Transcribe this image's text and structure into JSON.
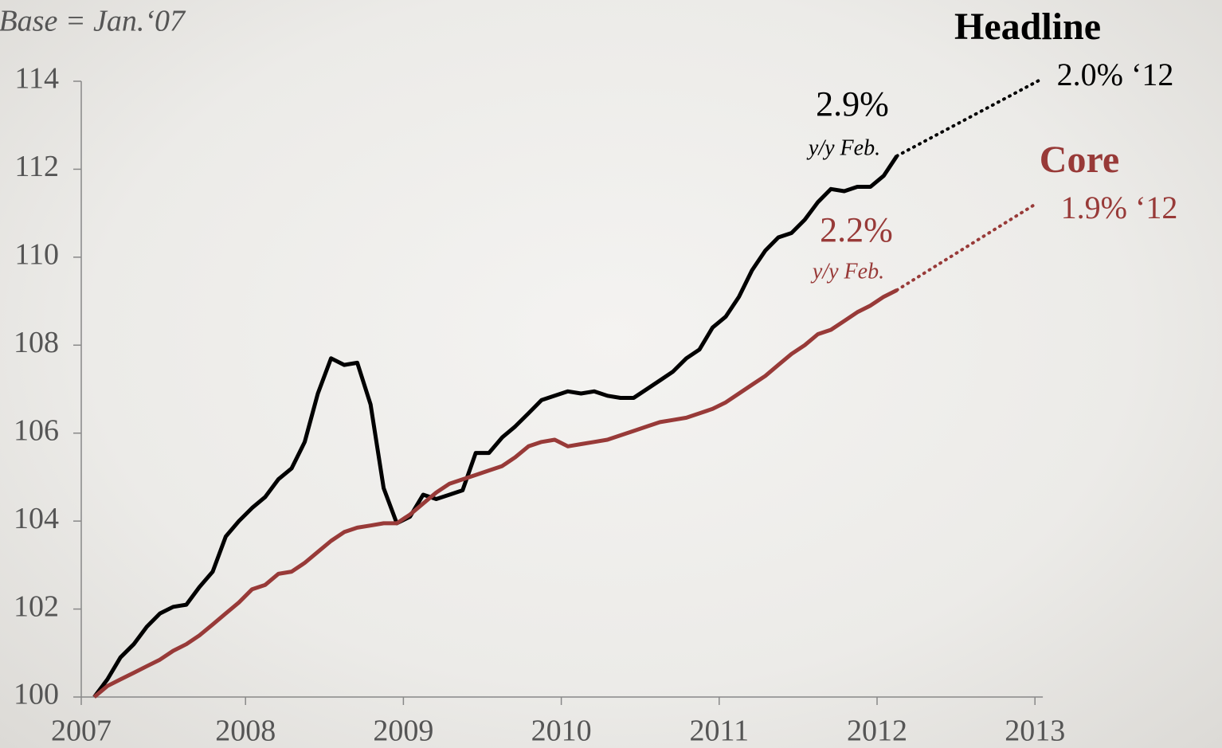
{
  "chart_data": {
    "type": "line",
    "subtitle": "Base = Jan.‘07",
    "x": [
      2007.042,
      2007.125,
      2007.208,
      2007.292,
      2007.375,
      2007.458,
      2007.542,
      2007.625,
      2007.708,
      2007.792,
      2007.875,
      2007.958,
      2008.042,
      2008.125,
      2008.208,
      2008.292,
      2008.375,
      2008.458,
      2008.542,
      2008.625,
      2008.708,
      2008.792,
      2008.875,
      2008.958,
      2009.042,
      2009.125,
      2009.208,
      2009.292,
      2009.375,
      2009.458,
      2009.542,
      2009.625,
      2009.708,
      2009.792,
      2009.875,
      2009.958,
      2010.042,
      2010.125,
      2010.208,
      2010.292,
      2010.375,
      2010.458,
      2010.542,
      2010.625,
      2010.708,
      2010.792,
      2010.875,
      2010.958,
      2011.042,
      2011.125,
      2011.208,
      2011.292,
      2011.375,
      2011.458,
      2011.542,
      2011.625,
      2011.708,
      2011.792,
      2011.875,
      2011.958,
      2012.042,
      2012.125
    ],
    "series": [
      {
        "name": "Headline",
        "color": "#000000",
        "values": [
          100,
          100.4,
          100.9,
          101.2,
          101.6,
          101.9,
          102.05,
          102.1,
          102.5,
          102.85,
          103.65,
          104.0,
          104.3,
          104.55,
          104.95,
          105.2,
          105.8,
          106.9,
          107.7,
          107.55,
          107.6,
          106.65,
          104.75,
          103.95,
          104.1,
          104.6,
          104.5,
          104.6,
          104.7,
          105.55,
          105.55,
          105.9,
          106.15,
          106.45,
          106.75,
          106.85,
          106.95,
          106.9,
          106.95,
          106.85,
          106.8,
          106.8,
          107.0,
          107.2,
          107.4,
          107.7,
          107.9,
          108.4,
          108.65,
          109.1,
          109.7,
          110.15,
          110.45,
          110.55,
          110.85,
          111.25,
          111.55,
          111.5,
          111.6,
          111.6,
          111.85,
          112.3
        ],
        "last_label": "2.9%",
        "last_note": "y/y Feb.",
        "projection": {
          "x": [
            2012.125,
            2013.042
          ],
          "values": [
            112.3,
            114.05
          ],
          "label": "2.0% ‘12"
        }
      },
      {
        "name": "Core",
        "color": "#983a38",
        "values": [
          100,
          100.25,
          100.4,
          100.55,
          100.7,
          100.85,
          101.05,
          101.2,
          101.4,
          101.65,
          101.9,
          102.15,
          102.45,
          102.55,
          102.8,
          102.85,
          103.05,
          103.3,
          103.55,
          103.75,
          103.85,
          103.9,
          103.95,
          103.95,
          104.15,
          104.4,
          104.65,
          104.85,
          104.95,
          105.05,
          105.15,
          105.25,
          105.45,
          105.7,
          105.8,
          105.85,
          105.7,
          105.75,
          105.8,
          105.85,
          105.95,
          106.05,
          106.15,
          106.25,
          106.3,
          106.35,
          106.45,
          106.55,
          106.7,
          106.9,
          107.1,
          107.3,
          107.55,
          107.8,
          108.0,
          108.25,
          108.35,
          108.55,
          108.75,
          108.9,
          109.1,
          109.25
        ],
        "last_label": "2.2%",
        "last_note": "y/y Feb.",
        "projection": {
          "x": [
            2012.125,
            2013.0
          ],
          "values": [
            109.25,
            111.2
          ],
          "label": "1.9% ‘12"
        }
      }
    ],
    "xlim": [
      2007,
      2013.05
    ],
    "xticks": [
      2007,
      2008,
      2009,
      2010,
      2011,
      2012,
      2013
    ],
    "ylim": [
      100,
      114
    ],
    "yticks": [
      100,
      102,
      104,
      106,
      108,
      110,
      112,
      114
    ]
  }
}
